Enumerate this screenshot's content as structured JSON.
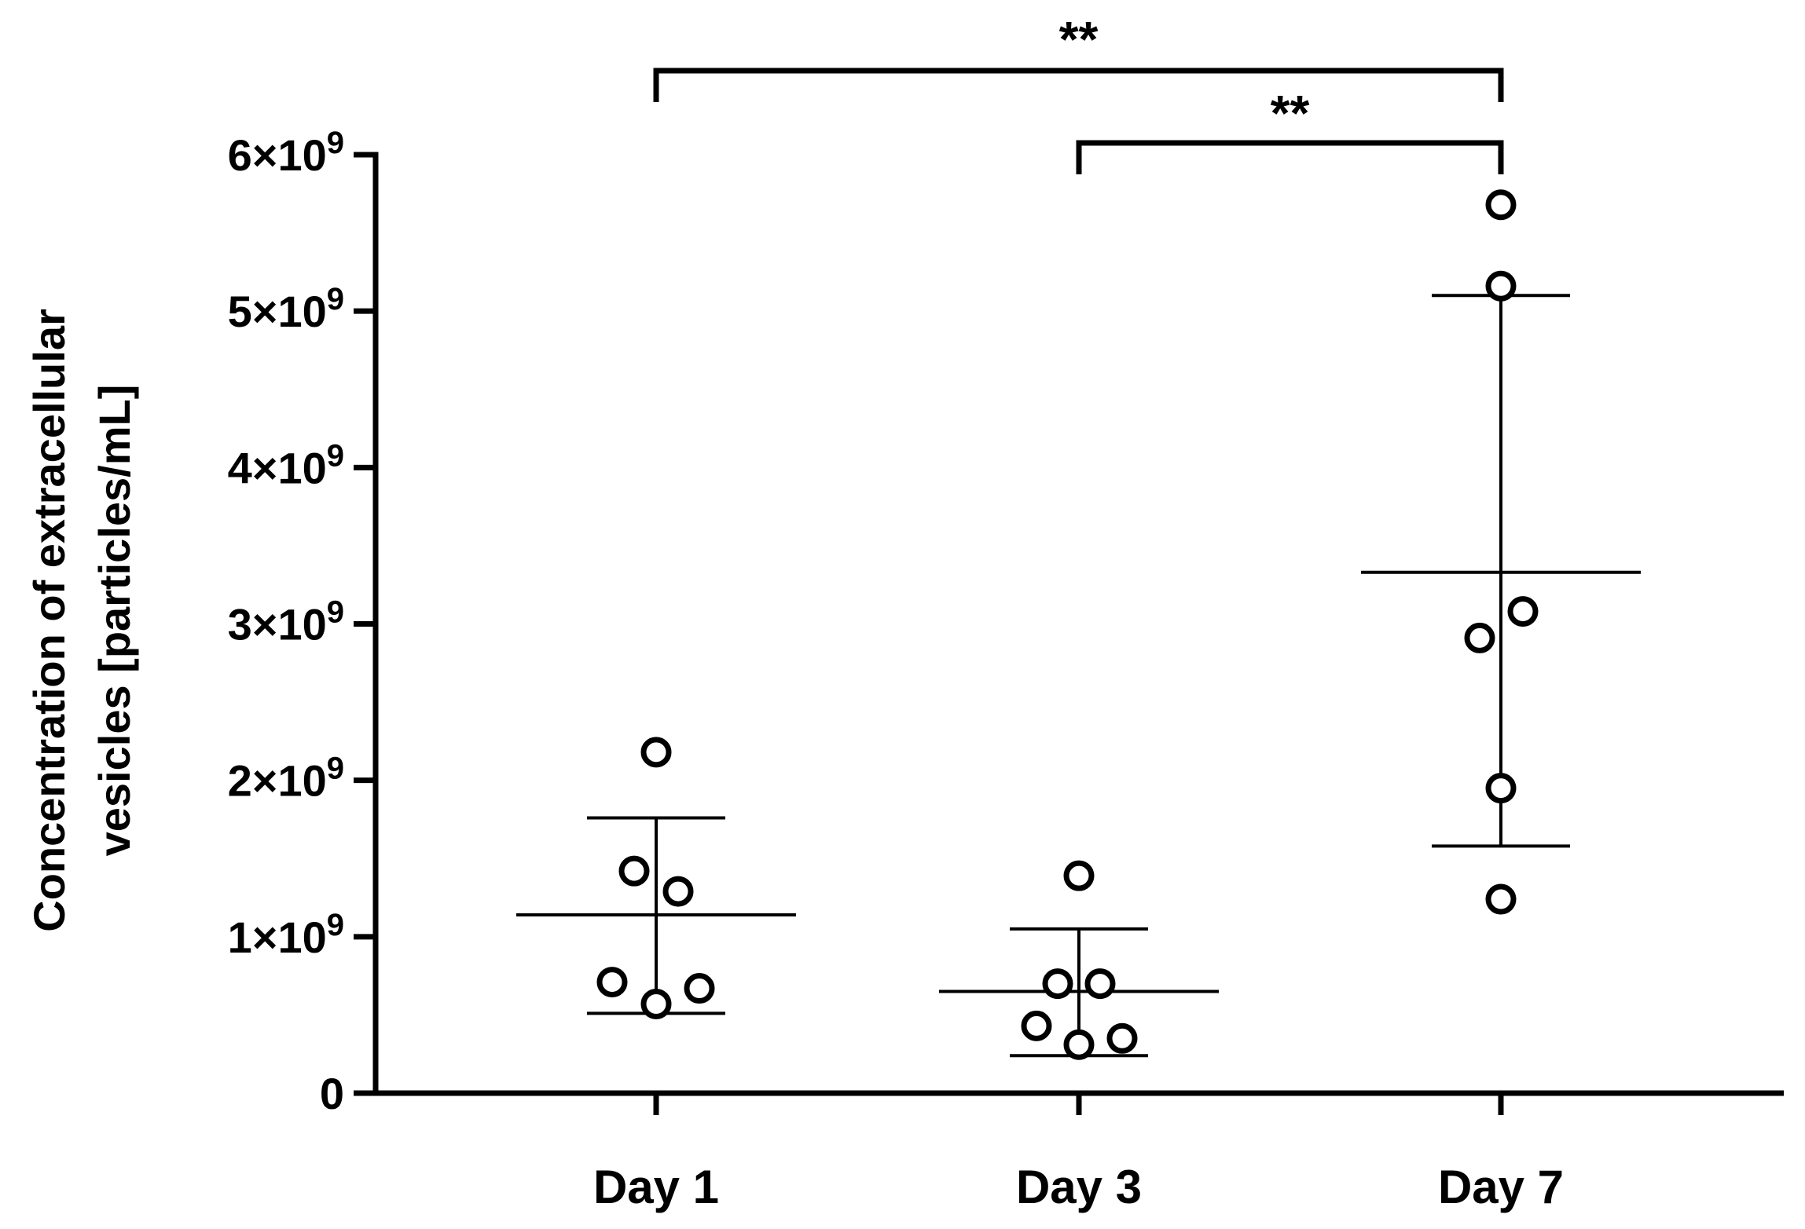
{
  "chart_data": {
    "type": "scatter",
    "xlabel": "",
    "ylabel": "Concentration of extracellular vesicles [particles/mL]",
    "ylabel_lines": [
      "Concentration of extracellular",
      "vesicles [particles/mL]"
    ],
    "categories": [
      "Day 1",
      "Day 3",
      "Day 7"
    ],
    "ylim": [
      0,
      6000000000
    ],
    "yticks": [
      {
        "value": 0,
        "label": "0",
        "mant": "",
        "exp": ""
      },
      {
        "value": 1000000000,
        "label": "1×10^9",
        "mant": "1×10",
        "exp": "9"
      },
      {
        "value": 2000000000,
        "label": "2×10^9",
        "mant": "2×10",
        "exp": "9"
      },
      {
        "value": 3000000000,
        "label": "3×10^9",
        "mant": "3×10",
        "exp": "9"
      },
      {
        "value": 4000000000,
        "label": "4×10^9",
        "mant": "4×10",
        "exp": "9"
      },
      {
        "value": 5000000000,
        "label": "5×10^9",
        "mant": "5×10",
        "exp": "9"
      },
      {
        "value": 6000000000,
        "label": "6×10^9",
        "mant": "6×10",
        "exp": "9"
      }
    ],
    "groups": [
      {
        "category": "Day 1",
        "points": [
          2180000000,
          1420000000,
          1290000000,
          710000000,
          670000000,
          570000000
        ],
        "mean": 1140000000,
        "err_low": 510000000,
        "err_high": 1760000000
      },
      {
        "category": "Day 3",
        "points": [
          1390000000,
          700000000,
          700000000,
          430000000,
          350000000,
          310000000
        ],
        "mean": 650000000,
        "err_low": 240000000,
        "err_high": 1050000000
      },
      {
        "category": "Day 7",
        "points": [
          5680000000,
          5160000000,
          3080000000,
          2910000000,
          1950000000,
          1240000000
        ],
        "mean": 3330000000,
        "err_low": 1580000000,
        "err_high": 5100000000
      }
    ],
    "significance": [
      {
        "from": "Day 1",
        "to": "Day 7",
        "label": "**"
      },
      {
        "from": "Day 3",
        "to": "Day 7",
        "label": "**"
      }
    ],
    "grid": false,
    "legend": "none"
  }
}
